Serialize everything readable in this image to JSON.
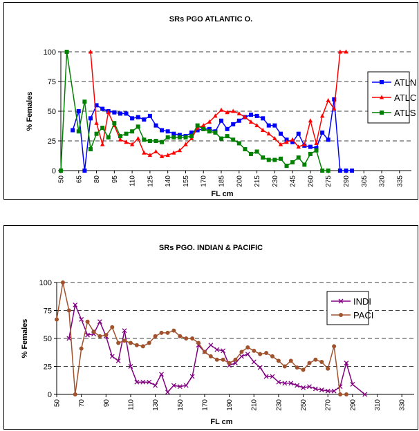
{
  "chart_data": [
    {
      "type": "line",
      "title": "SRs  PGO ATLANTIC O.",
      "xlabel": "FL cm",
      "ylabel": "% Females",
      "xlim": [
        50,
        345
      ],
      "ylim": [
        0,
        100
      ],
      "yticks": [
        0,
        25,
        50,
        75,
        100
      ],
      "xticks": [
        50,
        65,
        80,
        95,
        110,
        125,
        140,
        155,
        170,
        185,
        200,
        215,
        230,
        245,
        260,
        275,
        290,
        305,
        320,
        335
      ],
      "grid": "dashed horizontal",
      "legend": "right",
      "series": [
        {
          "name": "ATLN",
          "color": "#0000ff",
          "marker": "square",
          "points": [
            [
              60,
              34
            ],
            [
              65,
              50
            ],
            [
              70,
              0
            ],
            [
              75,
              44
            ],
            [
              80,
              55
            ],
            [
              85,
              52
            ],
            [
              90,
              50
            ],
            [
              95,
              49
            ],
            [
              100,
              48
            ],
            [
              105,
              48
            ],
            [
              110,
              44
            ],
            [
              115,
              45
            ],
            [
              120,
              43
            ],
            [
              125,
              46
            ],
            [
              130,
              38
            ],
            [
              135,
              34
            ],
            [
              140,
              33
            ],
            [
              145,
              31
            ],
            [
              150,
              30
            ],
            [
              155,
              29
            ],
            [
              160,
              32
            ],
            [
              165,
              34
            ],
            [
              170,
              35
            ],
            [
              175,
              35
            ],
            [
              180,
              33
            ],
            [
              185,
              42
            ],
            [
              190,
              35
            ],
            [
              195,
              39
            ],
            [
              200,
              42
            ],
            [
              205,
              45
            ],
            [
              210,
              47
            ],
            [
              215,
              46
            ],
            [
              220,
              44
            ],
            [
              225,
              38
            ],
            [
              230,
              38
            ],
            [
              235,
              31
            ],
            [
              240,
              26
            ],
            [
              245,
              24
            ],
            [
              250,
              31
            ],
            [
              255,
              21
            ],
            [
              260,
              20
            ],
            [
              265,
              19
            ],
            [
              270,
              32
            ],
            [
              275,
              26
            ],
            [
              280,
              60
            ],
            [
              285,
              0
            ],
            [
              290,
              0
            ],
            [
              295,
              0
            ]
          ]
        },
        {
          "name": "ATLC",
          "color": "#ff0000",
          "marker": "triangle",
          "points": [
            [
              75,
              100
            ],
            [
              80,
              40
            ],
            [
              85,
              22
            ],
            [
              90,
              49
            ],
            [
              95,
              38
            ],
            [
              100,
              26
            ],
            [
              105,
              24
            ],
            [
              110,
              22
            ],
            [
              115,
              27
            ],
            [
              120,
              15
            ],
            [
              125,
              13
            ],
            [
              130,
              16
            ],
            [
              135,
              12
            ],
            [
              140,
              13
            ],
            [
              145,
              15
            ],
            [
              150,
              17
            ],
            [
              155,
              22
            ],
            [
              160,
              27
            ],
            [
              165,
              36
            ],
            [
              170,
              38
            ],
            [
              175,
              41
            ],
            [
              180,
              46
            ],
            [
              185,
              51
            ],
            [
              190,
              49
            ],
            [
              195,
              50
            ],
            [
              200,
              48
            ],
            [
              205,
              45
            ],
            [
              210,
              41
            ],
            [
              215,
              38
            ],
            [
              220,
              34
            ],
            [
              225,
              31
            ],
            [
              230,
              27
            ],
            [
              235,
              22
            ],
            [
              240,
              24
            ],
            [
              245,
              26
            ],
            [
              250,
              20
            ],
            [
              255,
              22
            ],
            [
              260,
              42
            ],
            [
              265,
              23
            ],
            [
              270,
              46
            ],
            [
              275,
              59
            ],
            [
              280,
              52
            ],
            [
              285,
              100
            ],
            [
              290,
              100
            ]
          ]
        },
        {
          "name": "ATLS",
          "color": "#008000",
          "marker": "square",
          "points": [
            [
              50,
              0
            ],
            [
              55,
              100
            ],
            [
              65,
              33
            ],
            [
              70,
              58
            ],
            [
              75,
              18
            ],
            [
              80,
              31
            ],
            [
              85,
              36
            ],
            [
              90,
              28
            ],
            [
              95,
              40
            ],
            [
              100,
              29
            ],
            [
              105,
              31
            ],
            [
              110,
              33
            ],
            [
              115,
              37
            ],
            [
              120,
              26
            ],
            [
              125,
              25
            ],
            [
              130,
              25
            ],
            [
              135,
              24
            ],
            [
              140,
              28
            ],
            [
              145,
              28
            ],
            [
              150,
              28
            ],
            [
              155,
              28
            ],
            [
              160,
              29
            ],
            [
              165,
              38
            ],
            [
              170,
              35
            ],
            [
              175,
              33
            ],
            [
              180,
              32
            ],
            [
              185,
              27
            ],
            [
              190,
              29
            ],
            [
              195,
              26
            ],
            [
              200,
              23
            ],
            [
              205,
              18
            ],
            [
              210,
              14
            ],
            [
              215,
              16
            ],
            [
              220,
              11
            ],
            [
              225,
              9
            ],
            [
              230,
              9
            ],
            [
              235,
              10
            ],
            [
              240,
              4
            ],
            [
              245,
              7
            ],
            [
              250,
              11
            ],
            [
              255,
              5
            ],
            [
              260,
              14
            ],
            [
              265,
              17
            ],
            [
              270,
              0
            ],
            [
              275,
              0
            ]
          ]
        }
      ]
    },
    {
      "type": "line",
      "title": "SRs PGO. INDIAN & PACIFIC",
      "xlabel": "FL cm",
      "ylabel": "% Females",
      "xlim": [
        50,
        340
      ],
      "ylim": [
        0,
        100
      ],
      "yticks": [
        0,
        25,
        50,
        75,
        100
      ],
      "xticks": [
        50,
        70,
        90,
        110,
        130,
        150,
        170,
        190,
        210,
        230,
        250,
        270,
        290,
        310,
        330
      ],
      "grid": "dashed horizontal",
      "legend": "top-right",
      "series": [
        {
          "name": "INDI",
          "color": "#800080",
          "marker": "x",
          "points": [
            [
              60,
              50
            ],
            [
              65,
              80
            ],
            [
              70,
              67
            ],
            [
              75,
              53
            ],
            [
              80,
              54
            ],
            [
              85,
              65
            ],
            [
              90,
              52
            ],
            [
              95,
              34
            ],
            [
              100,
              30
            ],
            [
              105,
              57
            ],
            [
              110,
              25
            ],
            [
              115,
              11
            ],
            [
              120,
              11
            ],
            [
              125,
              11
            ],
            [
              130,
              8
            ],
            [
              135,
              18
            ],
            [
              140,
              2
            ],
            [
              145,
              8
            ],
            [
              150,
              7
            ],
            [
              155,
              8
            ],
            [
              160,
              16
            ],
            [
              165,
              44
            ],
            [
              170,
              38
            ],
            [
              175,
              44
            ],
            [
              180,
              40
            ],
            [
              185,
              39
            ],
            [
              190,
              26
            ],
            [
              195,
              28
            ],
            [
              200,
              34
            ],
            [
              205,
              36
            ],
            [
              210,
              29
            ],
            [
              215,
              24
            ],
            [
              220,
              16
            ],
            [
              225,
              16
            ],
            [
              230,
              11
            ],
            [
              235,
              10
            ],
            [
              240,
              10
            ],
            [
              245,
              8
            ],
            [
              250,
              6
            ],
            [
              255,
              7
            ],
            [
              260,
              5
            ],
            [
              265,
              4
            ],
            [
              270,
              3
            ],
            [
              275,
              3
            ],
            [
              280,
              7
            ],
            [
              285,
              28
            ],
            [
              290,
              9
            ],
            [
              300,
              0
            ]
          ]
        },
        {
          "name": "PACI",
          "color": "#a0522d",
          "marker": "circle",
          "points": [
            [
              50,
              67
            ],
            [
              55,
              100
            ],
            [
              60,
              75
            ],
            [
              65,
              0
            ],
            [
              70,
              41
            ],
            [
              75,
              65
            ],
            [
              80,
              56
            ],
            [
              85,
              52
            ],
            [
              90,
              53
            ],
            [
              95,
              60
            ],
            [
              100,
              46
            ],
            [
              105,
              48
            ],
            [
              110,
              46
            ],
            [
              115,
              44
            ],
            [
              120,
              43
            ],
            [
              125,
              46
            ],
            [
              130,
              52
            ],
            [
              135,
              55
            ],
            [
              140,
              55
            ],
            [
              145,
              57
            ],
            [
              150,
              52
            ],
            [
              155,
              50
            ],
            [
              160,
              50
            ],
            [
              165,
              46
            ],
            [
              170,
              38
            ],
            [
              175,
              34
            ],
            [
              180,
              31
            ],
            [
              185,
              31
            ],
            [
              190,
              28
            ],
            [
              195,
              31
            ],
            [
              200,
              38
            ],
            [
              205,
              42
            ],
            [
              210,
              39
            ],
            [
              215,
              36
            ],
            [
              220,
              37
            ],
            [
              225,
              34
            ],
            [
              230,
              30
            ],
            [
              235,
              25
            ],
            [
              240,
              30
            ],
            [
              245,
              24
            ],
            [
              250,
              22
            ],
            [
              255,
              28
            ],
            [
              260,
              31
            ],
            [
              265,
              29
            ],
            [
              270,
              23
            ],
            [
              275,
              43
            ],
            [
              280,
              0
            ],
            [
              285,
              0
            ]
          ]
        }
      ]
    }
  ]
}
